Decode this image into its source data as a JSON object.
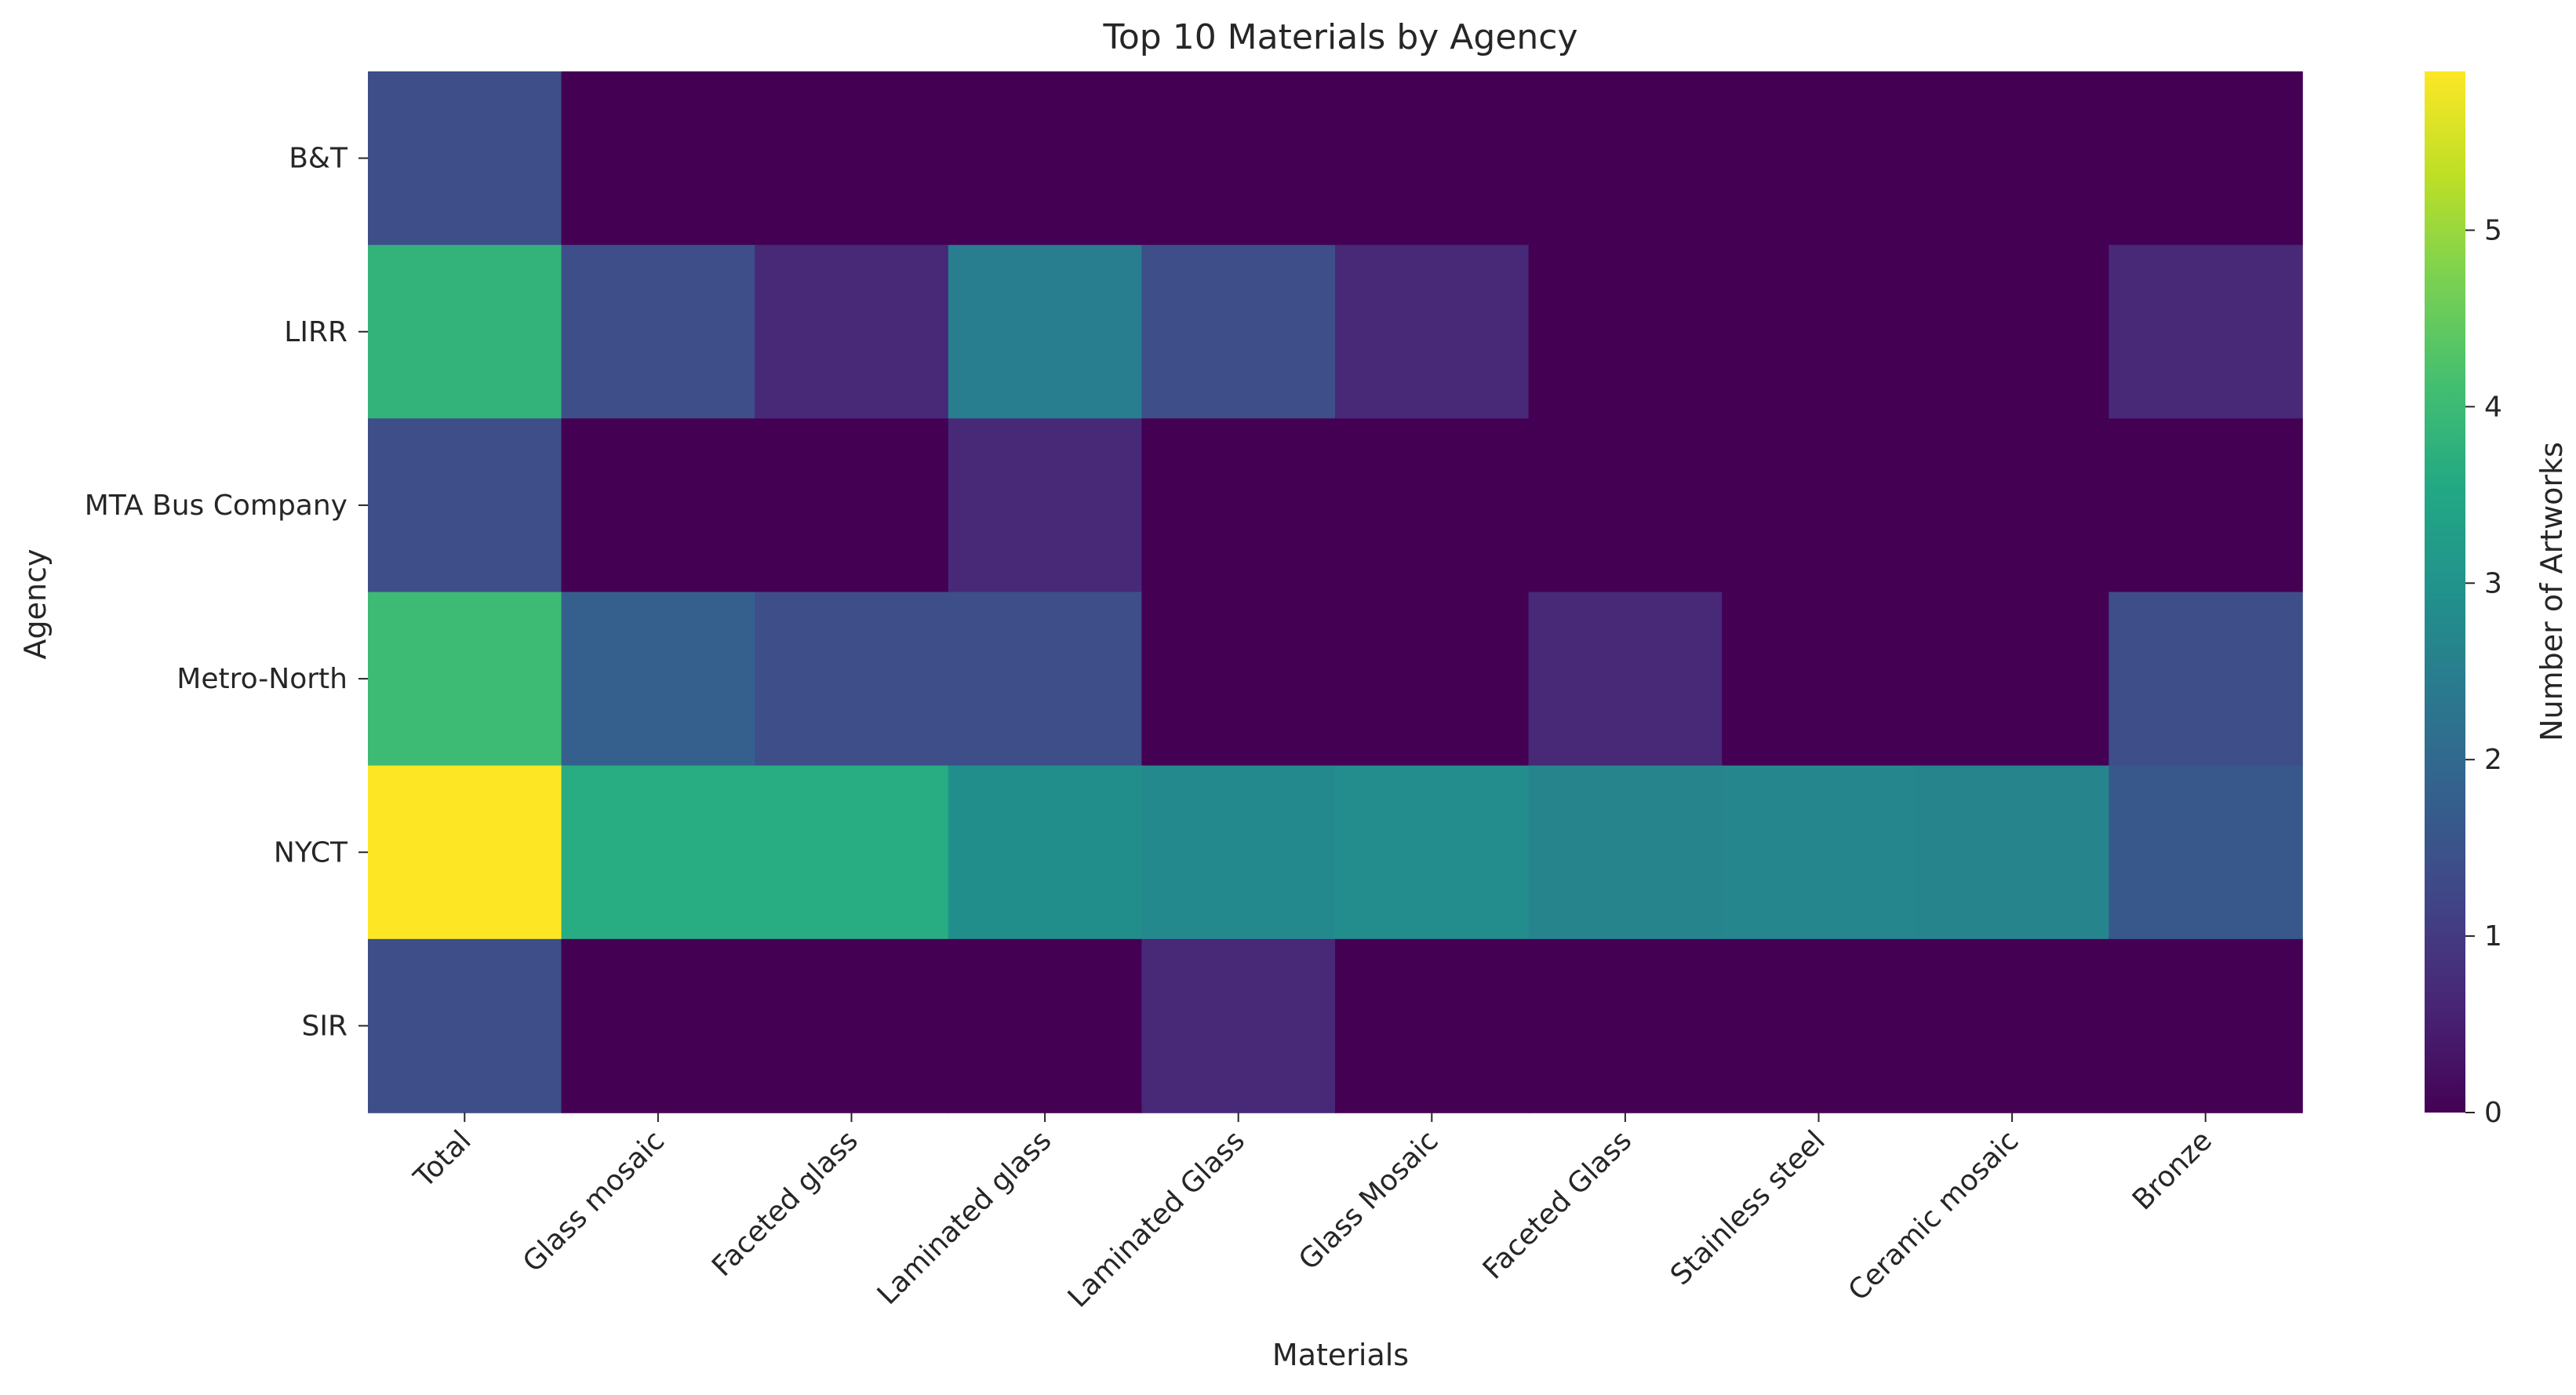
{
  "chart_data": {
    "type": "heatmap",
    "title": "Top 10 Materials by Agency",
    "xlabel": "Materials",
    "ylabel": "Agency",
    "colorbar_label": "Number of Artworks",
    "colormap": "viridis",
    "vmin": 0,
    "vmax": 5.9,
    "colorbar_ticks": [
      0,
      1,
      2,
      3,
      4,
      5
    ],
    "x": [
      "Total",
      "Glass mosaic",
      "Faceted glass",
      "Laminated glass",
      "Laminated Glass",
      "Glass Mosaic",
      "Faceted Glass",
      "Stainless steel",
      "Ceramic mosaic",
      "Bronze"
    ],
    "y": [
      "B&T",
      "LIRR",
      "MTA Bus Company",
      "Metro-North",
      "NYCT",
      "SIR"
    ],
    "values": [
      [
        1.39,
        0,
        0,
        0,
        0,
        0,
        0,
        0,
        0,
        0
      ],
      [
        3.83,
        1.39,
        0.69,
        2.48,
        1.39,
        0.69,
        0,
        0,
        0,
        0.69
      ],
      [
        1.39,
        0,
        0,
        0.69,
        0,
        0,
        0,
        0,
        0,
        0
      ],
      [
        4.01,
        1.79,
        1.39,
        1.39,
        0,
        0,
        0.69,
        0,
        0,
        1.39
      ],
      [
        5.9,
        3.64,
        3.64,
        2.89,
        2.77,
        2.83,
        2.64,
        2.71,
        2.64,
        1.61
      ],
      [
        1.39,
        0,
        0,
        0,
        0.69,
        0,
        0,
        0,
        0,
        0
      ]
    ],
    "grid": false
  }
}
